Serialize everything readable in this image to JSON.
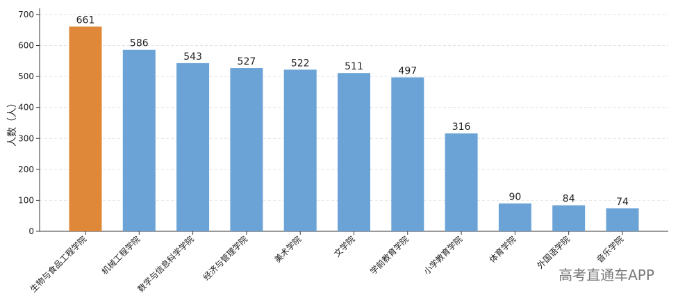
{
  "chart_data": {
    "type": "bar",
    "y_label": "人数（人）",
    "categories": [
      "生物与食品工程学院",
      "机械工程学院",
      "数学与信息科学学院",
      "经济与管理学院",
      "美术学院",
      "文学院",
      "学前教育学院",
      "小学教育学院",
      "体育学院",
      "外国语学院",
      "音乐学院"
    ],
    "values": [
      661,
      586,
      543,
      527,
      522,
      511,
      497,
      316,
      90,
      84,
      74
    ],
    "colors": [
      "#e0883a",
      "#6ca3d6",
      "#6ca3d6",
      "#6ca3d6",
      "#6ca3d6",
      "#6ca3d6",
      "#6ca3d6",
      "#6ca3d6",
      "#6ca3d6",
      "#6ca3d6",
      "#6ca3d6"
    ],
    "ylim": [
      0,
      720
    ],
    "yticks": [
      0,
      100,
      200,
      300,
      400,
      500,
      600,
      700
    ],
    "grid": true
  },
  "watermark": "高考直通车APP"
}
